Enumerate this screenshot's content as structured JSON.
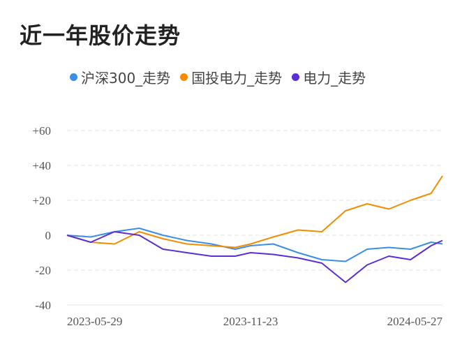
{
  "title": "近一年股价走势",
  "chart_data": {
    "type": "line",
    "title": "近一年股价走势",
    "xlabel": "",
    "ylabel": "",
    "ylim": [
      -40,
      60
    ],
    "y_ticks": [
      "+60",
      "+40",
      "+20",
      "0",
      "-20",
      "-40"
    ],
    "y_tick_values": [
      60,
      40,
      20,
      0,
      -20,
      -40
    ],
    "x_tick_labels": [
      "2023-05-29",
      "2023-11-23",
      "2024-05-27"
    ],
    "grid": true,
    "legend_position": "top",
    "x": [
      "2023-05-29",
      "2023-06-21",
      "2023-07-14",
      "2023-08-07",
      "2023-08-30",
      "2023-09-22",
      "2023-10-16",
      "2023-11-08",
      "2023-11-23",
      "2023-12-15",
      "2024-01-08",
      "2024-01-31",
      "2024-02-23",
      "2024-03-15",
      "2024-04-05",
      "2024-04-26",
      "2024-05-16",
      "2024-05-27"
    ],
    "series": [
      {
        "name": "沪深300_走势",
        "color": "#3a8ee6",
        "values": [
          0,
          -1,
          2,
          4,
          0,
          -3,
          -5,
          -8,
          -6,
          -5,
          -10,
          -14,
          -15,
          -8,
          -7,
          -8,
          -4,
          -5
        ]
      },
      {
        "name": "国投电力_走势",
        "color": "#f28c00",
        "values": [
          0,
          -4,
          -5,
          2,
          -2,
          -5,
          -6,
          -7,
          -5,
          -1,
          3,
          2,
          14,
          18,
          15,
          20,
          24,
          34
        ]
      },
      {
        "name": "电力_走势",
        "color": "#5a2fd3",
        "values": [
          0,
          -4,
          2,
          0,
          -8,
          -10,
          -12,
          -12,
          -10,
          -11,
          -13,
          -16,
          -27,
          -17,
          -12,
          -14,
          -6,
          -3
        ]
      }
    ]
  }
}
